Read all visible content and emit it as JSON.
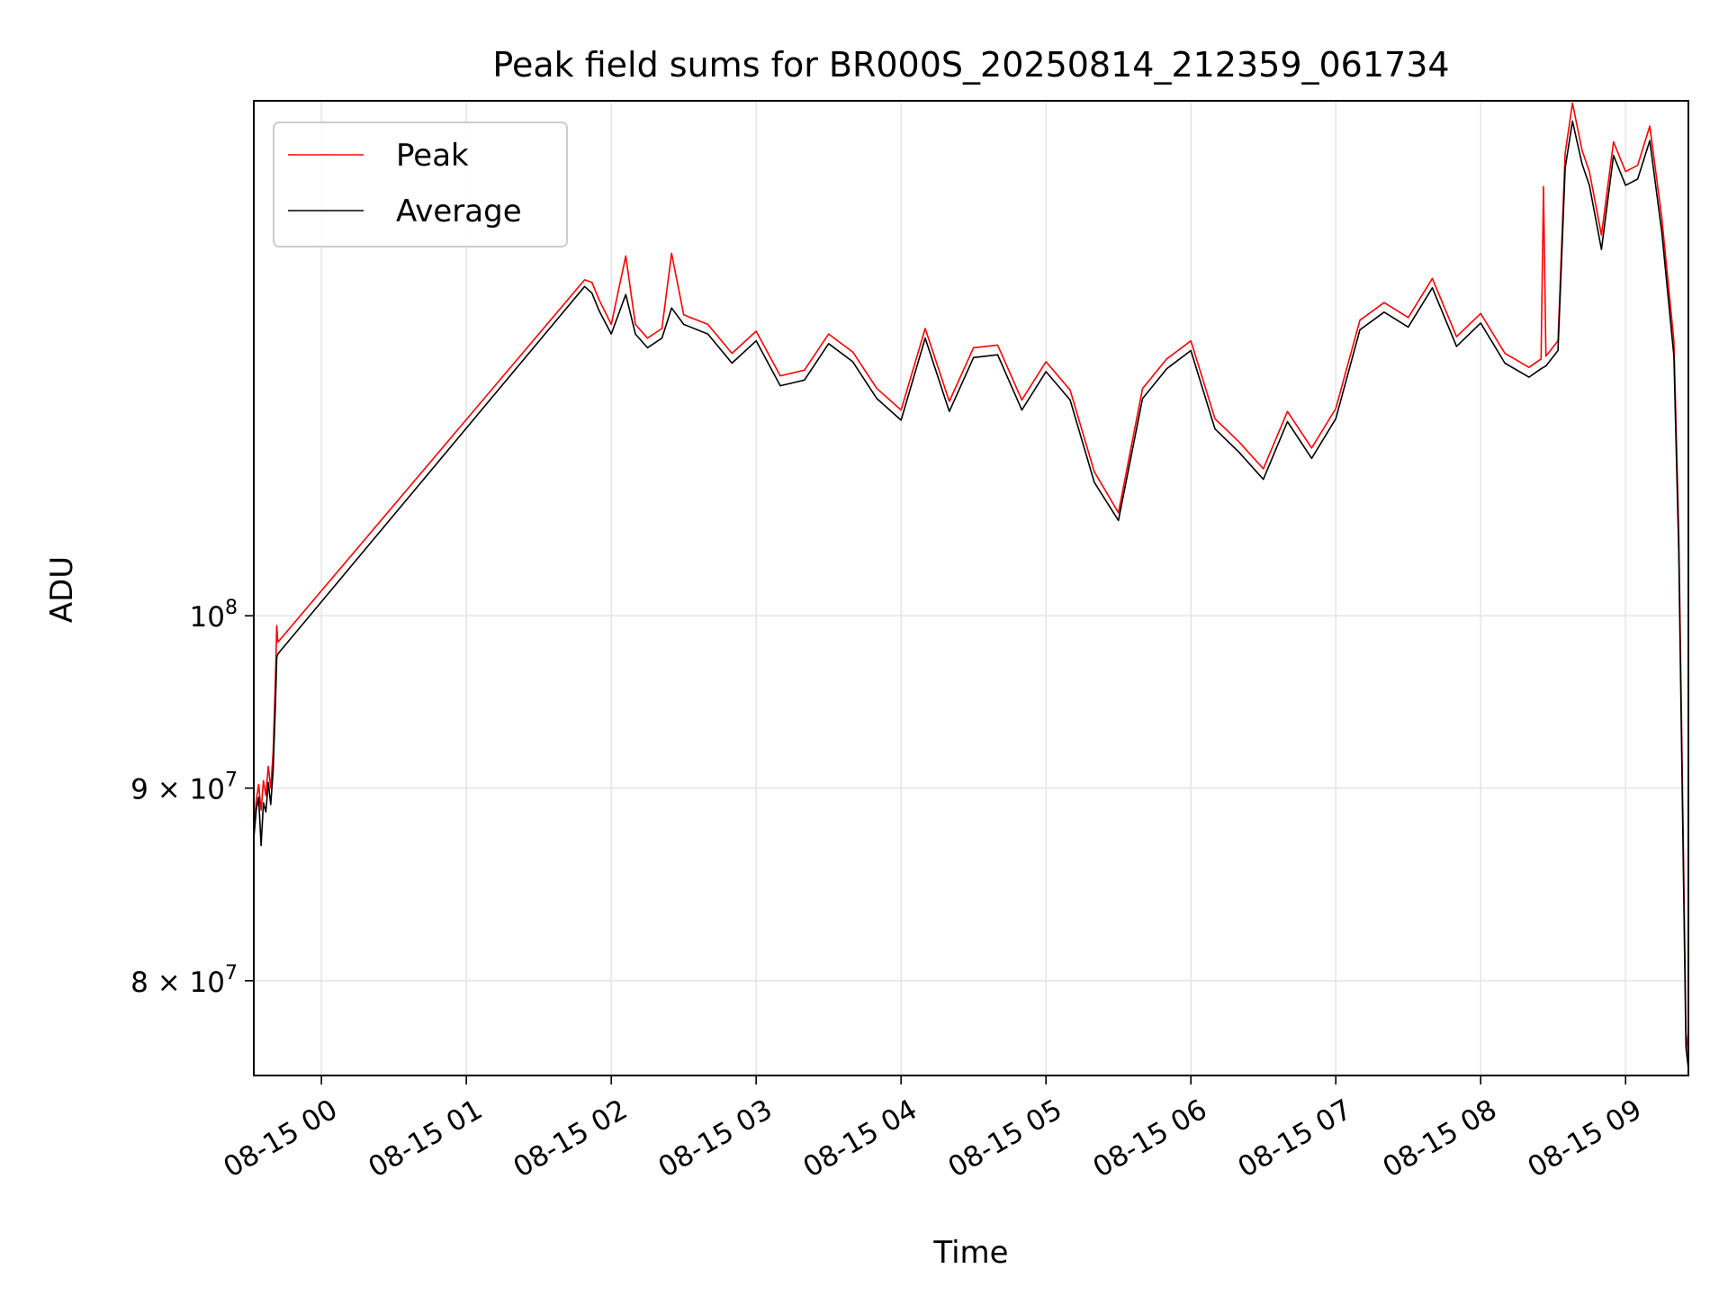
{
  "chart_data": {
    "type": "line",
    "title": "Peak field sums for BR000S_20250814_212359_061734",
    "xlabel": "Time",
    "ylabel": "ADU",
    "y_scale": "log",
    "xlim": [
      "2025-08-14 23:32",
      "2025-08-15 09:26"
    ],
    "ylim": [
      75500000,
      137000000
    ],
    "x_ticks": [
      {
        "value": "2025-08-15 00:00",
        "label": "08-15 00"
      },
      {
        "value": "2025-08-15 01:00",
        "label": "08-15 01"
      },
      {
        "value": "2025-08-15 02:00",
        "label": "08-15 02"
      },
      {
        "value": "2025-08-15 03:00",
        "label": "08-15 03"
      },
      {
        "value": "2025-08-15 04:00",
        "label": "08-15 04"
      },
      {
        "value": "2025-08-15 05:00",
        "label": "08-15 05"
      },
      {
        "value": "2025-08-15 06:00",
        "label": "08-15 06"
      },
      {
        "value": "2025-08-15 07:00",
        "label": "08-15 07"
      },
      {
        "value": "2025-08-15 08:00",
        "label": "08-15 08"
      },
      {
        "value": "2025-08-15 09:00",
        "label": "08-15 09"
      }
    ],
    "y_ticks": [
      {
        "value": 80000000,
        "base": "8 × 10",
        "exp": "7"
      },
      {
        "value": 90000000,
        "base": "9 × 10",
        "exp": "7"
      },
      {
        "value": 100000000,
        "base": "10",
        "exp": "8"
      }
    ],
    "grid": true,
    "legend_position": "top-left",
    "series": [
      {
        "name": "Peak",
        "color": "#ff0000",
        "points": [
          [
            "2025-08-14 23:32",
            87800000
          ],
          [
            "2025-08-14 23:33",
            89300000
          ],
          [
            "2025-08-14 23:34",
            90200000
          ],
          [
            "2025-08-14 23:35",
            88800000
          ],
          [
            "2025-08-14 23:36",
            90400000
          ],
          [
            "2025-08-14 23:37",
            89600000
          ],
          [
            "2025-08-14 23:38",
            91200000
          ],
          [
            "2025-08-14 23:39",
            90000000
          ],
          [
            "2025-08-14 23:40",
            92000000
          ],
          [
            "2025-08-14 23:41",
            96500000
          ],
          [
            "2025-08-14 23:41:30",
            99400000
          ],
          [
            "2025-08-14 23:42",
            98400000
          ],
          [
            "2025-08-15 01:49",
            122800000
          ],
          [
            "2025-08-15 01:52",
            122600000
          ],
          [
            "2025-08-15 01:55",
            121300000
          ],
          [
            "2025-08-15 02:00",
            119500000
          ],
          [
            "2025-08-15 02:06",
            124600000
          ],
          [
            "2025-08-15 02:10",
            119500000
          ],
          [
            "2025-08-15 02:15",
            118500000
          ],
          [
            "2025-08-15 02:21",
            119200000
          ],
          [
            "2025-08-15 02:25",
            124800000
          ],
          [
            "2025-08-15 02:30",
            120200000
          ],
          [
            "2025-08-15 02:40",
            119500000
          ],
          [
            "2025-08-15 02:50",
            117400000
          ],
          [
            "2025-08-15 03:00",
            119000000
          ],
          [
            "2025-08-15 03:10",
            115800000
          ],
          [
            "2025-08-15 03:20",
            116200000
          ],
          [
            "2025-08-15 03:30",
            118800000
          ],
          [
            "2025-08-15 03:40",
            117500000
          ],
          [
            "2025-08-15 03:50",
            114900000
          ],
          [
            "2025-08-15 04:00",
            113400000
          ],
          [
            "2025-08-15 04:10",
            119200000
          ],
          [
            "2025-08-15 04:20",
            114000000
          ],
          [
            "2025-08-15 04:30",
            117800000
          ],
          [
            "2025-08-15 04:40",
            118000000
          ],
          [
            "2025-08-15 04:50",
            114100000
          ],
          [
            "2025-08-15 05:00",
            116800000
          ],
          [
            "2025-08-15 05:10",
            114800000
          ],
          [
            "2025-08-15 05:20",
            109200000
          ],
          [
            "2025-08-15 05:30",
            106500000
          ],
          [
            "2025-08-15 05:40",
            114900000
          ],
          [
            "2025-08-15 05:50",
            117000000
          ],
          [
            "2025-08-15 06:00",
            118300000
          ],
          [
            "2025-08-15 06:10",
            112800000
          ],
          [
            "2025-08-15 06:20",
            111200000
          ],
          [
            "2025-08-15 06:30",
            109400000
          ],
          [
            "2025-08-15 06:40",
            113300000
          ],
          [
            "2025-08-15 06:50",
            110800000
          ],
          [
            "2025-08-15 07:00",
            113500000
          ],
          [
            "2025-08-15 07:10",
            119800000
          ],
          [
            "2025-08-15 07:20",
            121100000
          ],
          [
            "2025-08-15 07:30",
            120000000
          ],
          [
            "2025-08-15 07:40",
            122900000
          ],
          [
            "2025-08-15 07:50",
            118600000
          ],
          [
            "2025-08-15 08:00",
            120300000
          ],
          [
            "2025-08-15 08:10",
            117400000
          ],
          [
            "2025-08-15 08:20",
            116400000
          ],
          [
            "2025-08-15 08:25",
            117000000
          ],
          [
            "2025-08-15 08:26",
            130000000
          ],
          [
            "2025-08-15 08:27",
            117200000
          ],
          [
            "2025-08-15 08:32",
            118300000
          ],
          [
            "2025-08-15 08:35",
            132700000
          ],
          [
            "2025-08-15 08:38",
            136800000
          ],
          [
            "2025-08-15 08:42",
            132900000
          ],
          [
            "2025-08-15 08:45",
            131200000
          ],
          [
            "2025-08-15 08:50",
            126200000
          ],
          [
            "2025-08-15 08:55",
            133600000
          ],
          [
            "2025-08-15 09:00",
            131200000
          ],
          [
            "2025-08-15 09:05",
            131700000
          ],
          [
            "2025-08-15 09:10",
            134900000
          ],
          [
            "2025-08-15 09:15",
            127500000
          ],
          [
            "2025-08-15 09:20",
            118300000
          ],
          [
            "2025-08-15 09:22",
            105200000
          ],
          [
            "2025-08-15 09:24",
            86200000
          ],
          [
            "2025-08-15 09:25",
            77500000
          ],
          [
            "2025-08-15 09:26",
            76500000
          ]
        ]
      },
      {
        "name": "Average",
        "color": "#000000",
        "points": [
          [
            "2025-08-14 23:32",
            87300000
          ],
          [
            "2025-08-14 23:33",
            88800000
          ],
          [
            "2025-08-14 23:34",
            89500000
          ],
          [
            "2025-08-14 23:35",
            86900000
          ],
          [
            "2025-08-14 23:36",
            89200000
          ],
          [
            "2025-08-14 23:37",
            88700000
          ],
          [
            "2025-08-14 23:38",
            90300000
          ],
          [
            "2025-08-14 23:39",
            89100000
          ],
          [
            "2025-08-14 23:40",
            91000000
          ],
          [
            "2025-08-14 23:41",
            95000000
          ],
          [
            "2025-08-14 23:41:30",
            97500000
          ],
          [
            "2025-08-14 23:42",
            97700000
          ],
          [
            "2025-08-15 01:49",
            122300000
          ],
          [
            "2025-08-15 01:52",
            121800000
          ],
          [
            "2025-08-15 01:55",
            120500000
          ],
          [
            "2025-08-15 02:00",
            118800000
          ],
          [
            "2025-08-15 02:06",
            121700000
          ],
          [
            "2025-08-15 02:10",
            118800000
          ],
          [
            "2025-08-15 02:15",
            117800000
          ],
          [
            "2025-08-15 02:21",
            118500000
          ],
          [
            "2025-08-15 02:25",
            120700000
          ],
          [
            "2025-08-15 02:30",
            119500000
          ],
          [
            "2025-08-15 02:40",
            118800000
          ],
          [
            "2025-08-15 02:50",
            116700000
          ],
          [
            "2025-08-15 03:00",
            118300000
          ],
          [
            "2025-08-15 03:10",
            115100000
          ],
          [
            "2025-08-15 03:20",
            115500000
          ],
          [
            "2025-08-15 03:30",
            118100000
          ],
          [
            "2025-08-15 03:40",
            116800000
          ],
          [
            "2025-08-15 03:50",
            114200000
          ],
          [
            "2025-08-15 04:00",
            112700000
          ],
          [
            "2025-08-15 04:10",
            118500000
          ],
          [
            "2025-08-15 04:20",
            113300000
          ],
          [
            "2025-08-15 04:30",
            117100000
          ],
          [
            "2025-08-15 04:40",
            117300000
          ],
          [
            "2025-08-15 04:50",
            113400000
          ],
          [
            "2025-08-15 05:00",
            116100000
          ],
          [
            "2025-08-15 05:10",
            114100000
          ],
          [
            "2025-08-15 05:20",
            108500000
          ],
          [
            "2025-08-15 05:30",
            106000000
          ],
          [
            "2025-08-15 05:40",
            114200000
          ],
          [
            "2025-08-15 05:50",
            116300000
          ],
          [
            "2025-08-15 06:00",
            117600000
          ],
          [
            "2025-08-15 06:10",
            112100000
          ],
          [
            "2025-08-15 06:20",
            110500000
          ],
          [
            "2025-08-15 06:30",
            108700000
          ],
          [
            "2025-08-15 06:40",
            112600000
          ],
          [
            "2025-08-15 06:50",
            110100000
          ],
          [
            "2025-08-15 07:00",
            112800000
          ],
          [
            "2025-08-15 07:10",
            119100000
          ],
          [
            "2025-08-15 07:20",
            120400000
          ],
          [
            "2025-08-15 07:30",
            119300000
          ],
          [
            "2025-08-15 07:40",
            122200000
          ],
          [
            "2025-08-15 07:50",
            117900000
          ],
          [
            "2025-08-15 08:00",
            119600000
          ],
          [
            "2025-08-15 08:10",
            116700000
          ],
          [
            "2025-08-15 08:20",
            115700000
          ],
          [
            "2025-08-15 08:25",
            116300000
          ],
          [
            "2025-08-15 08:26",
            116400000
          ],
          [
            "2025-08-15 08:27",
            116500000
          ],
          [
            "2025-08-15 08:32",
            117600000
          ],
          [
            "2025-08-15 08:35",
            131500000
          ],
          [
            "2025-08-15 08:38",
            135300000
          ],
          [
            "2025-08-15 08:42",
            131800000
          ],
          [
            "2025-08-15 08:45",
            130100000
          ],
          [
            "2025-08-15 08:50",
            125100000
          ],
          [
            "2025-08-15 08:55",
            132500000
          ],
          [
            "2025-08-15 09:00",
            130100000
          ],
          [
            "2025-08-15 09:05",
            130600000
          ],
          [
            "2025-08-15 09:10",
            133700000
          ],
          [
            "2025-08-15 09:15",
            126400000
          ],
          [
            "2025-08-15 09:20",
            117200000
          ],
          [
            "2025-08-15 09:22",
            104000000
          ],
          [
            "2025-08-15 09:24",
            85000000
          ],
          [
            "2025-08-15 09:25",
            76800000
          ],
          [
            "2025-08-15 09:26",
            75800000
          ]
        ]
      }
    ]
  }
}
